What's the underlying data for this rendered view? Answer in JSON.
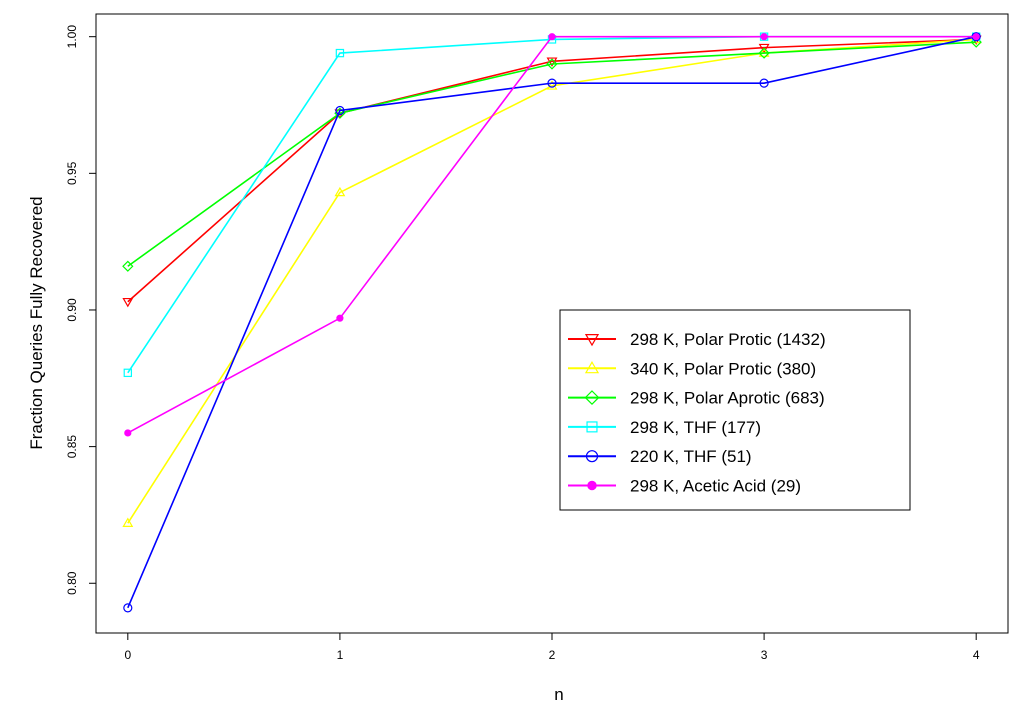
{
  "chart_data": {
    "type": "line",
    "title": "",
    "xlabel": "n",
    "ylabel": "Fraction Queries Fully Recovered",
    "x": [
      0,
      1,
      2,
      3,
      4
    ],
    "xlim": [
      -0.15,
      4.15
    ],
    "ylim": [
      0.7818,
      1.0083
    ],
    "x_ticks": [
      "0",
      "1",
      "2",
      "3",
      "4"
    ],
    "y_ticks": [
      "0.80",
      "0.85",
      "0.90",
      "0.95",
      "1.00"
    ],
    "grid": false,
    "legend_position": "center-right",
    "series": [
      {
        "name": "298 K, Polar Protic (1432)",
        "color": "#ff0000",
        "marker": "triangle-down",
        "values": [
          0.903,
          0.972,
          0.991,
          0.996,
          0.999
        ]
      },
      {
        "name": "340 K, Polar Protic (380)",
        "color": "#ffff00",
        "marker": "triangle-up",
        "values": [
          0.822,
          0.943,
          0.982,
          0.994,
          0.999
        ]
      },
      {
        "name": "298 K, Polar Aprotic (683)",
        "color": "#00ff00",
        "marker": "diamond",
        "values": [
          0.916,
          0.972,
          0.99,
          0.994,
          0.998
        ]
      },
      {
        "name": "298 K, THF (177)",
        "color": "#00ffff",
        "marker": "square",
        "values": [
          0.877,
          0.994,
          0.999,
          1.0,
          1.0
        ]
      },
      {
        "name": "220 K, THF (51)",
        "color": "#0000ff",
        "marker": "circle",
        "values": [
          0.791,
          0.973,
          0.983,
          0.983,
          1.0
        ]
      },
      {
        "name": "298 K, Acetic Acid (29)",
        "color": "#ff00ff",
        "marker": "dot",
        "values": [
          0.855,
          0.897,
          1.0,
          1.0,
          1.0
        ]
      }
    ]
  }
}
